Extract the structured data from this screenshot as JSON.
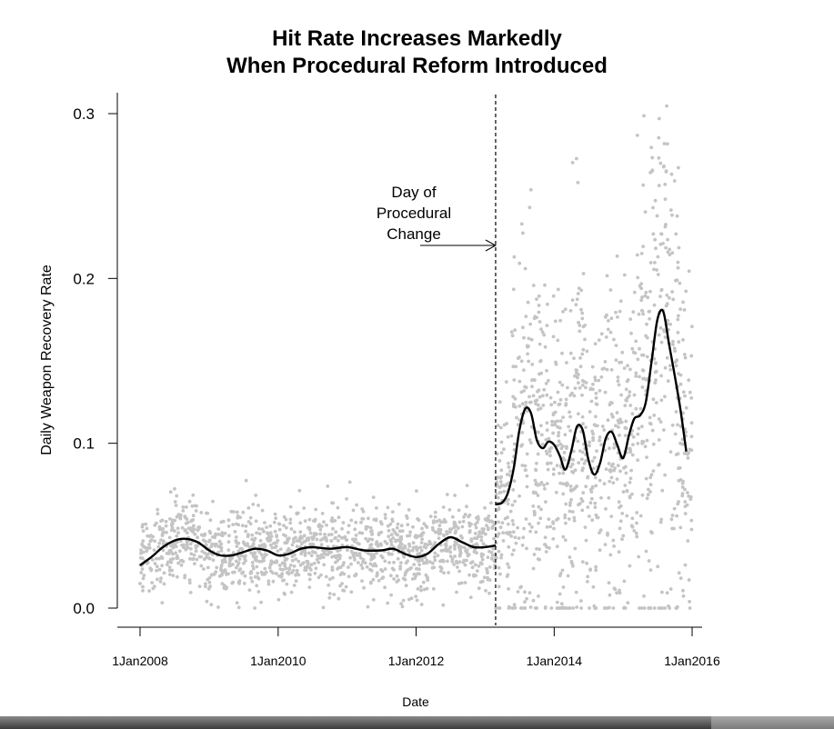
{
  "chart_data": {
    "type": "scatter",
    "title_lines": [
      "Hit Rate Increases Markedly",
      "When Procedural Reform Introduced"
    ],
    "xlabel": "Date",
    "ylabel": "Daily Weapon Recovery Rate",
    "x_axis_type": "date",
    "xlim": [
      "2008-01-01",
      "2016-01-01"
    ],
    "ylim": [
      0.0,
      0.3
    ],
    "x_ticks": [
      {
        "date": "2008-01-01",
        "label": "1Jan2008"
      },
      {
        "date": "2010-01-01",
        "label": "1Jan2010"
      },
      {
        "date": "2012-01-01",
        "label": "1Jan2012"
      },
      {
        "date": "2014-01-01",
        "label": "1Jan2014"
      },
      {
        "date": "2016-01-01",
        "label": "1Jan2016"
      }
    ],
    "y_ticks": [
      {
        "value": 0.0,
        "label": "0.0"
      },
      {
        "value": 0.1,
        "label": "0.1"
      },
      {
        "value": 0.2,
        "label": "0.2"
      },
      {
        "value": 0.3,
        "label": "0.3"
      }
    ],
    "grid": false,
    "legend": "none",
    "reform_date": "2013-02-25",
    "annotation": {
      "lines": [
        "Day of",
        "Procedural",
        "Change"
      ]
    },
    "colors": {
      "points": "#c4c4c4",
      "smooth_line": "#000000",
      "reform_line": "#000000"
    },
    "point_clouds": [
      {
        "from": "2008-01-01",
        "to": "2013-02-25",
        "n": 1350,
        "sd": 0.013,
        "max": 0.1
      },
      {
        "from": "2013-02-25",
        "to": "2016-01-01",
        "n": 1100,
        "sd_rel": 0.5,
        "max": 0.31,
        "zero_share": 0.05
      }
    ],
    "smooth_series": [
      {
        "segment": "pre-reform",
        "points": [
          [
            "2008-01-01",
            0.026
          ],
          [
            "2008-03-01",
            0.031
          ],
          [
            "2008-05-01",
            0.037
          ],
          [
            "2008-07-01",
            0.041
          ],
          [
            "2008-09-01",
            0.042
          ],
          [
            "2008-11-01",
            0.04
          ],
          [
            "2009-01-01",
            0.035
          ],
          [
            "2009-03-01",
            0.032
          ],
          [
            "2009-05-01",
            0.032
          ],
          [
            "2009-07-01",
            0.034
          ],
          [
            "2009-09-01",
            0.036
          ],
          [
            "2009-11-01",
            0.035
          ],
          [
            "2010-01-01",
            0.032
          ],
          [
            "2010-03-01",
            0.033
          ],
          [
            "2010-05-01",
            0.036
          ],
          [
            "2010-07-01",
            0.037
          ],
          [
            "2010-10-01",
            0.036
          ],
          [
            "2011-01-01",
            0.037
          ],
          [
            "2011-04-01",
            0.035
          ],
          [
            "2011-07-01",
            0.035
          ],
          [
            "2011-09-01",
            0.036
          ],
          [
            "2011-11-01",
            0.033
          ],
          [
            "2012-01-01",
            0.031
          ],
          [
            "2012-03-01",
            0.033
          ],
          [
            "2012-05-01",
            0.039
          ],
          [
            "2012-07-01",
            0.043
          ],
          [
            "2012-09-01",
            0.04
          ],
          [
            "2012-11-01",
            0.037
          ],
          [
            "2013-01-01",
            0.037
          ],
          [
            "2013-02-25",
            0.038
          ]
        ]
      },
      {
        "segment": "post-reform",
        "points": [
          [
            "2013-02-25",
            0.063
          ],
          [
            "2013-04-01",
            0.064
          ],
          [
            "2013-05-01",
            0.07
          ],
          [
            "2013-06-01",
            0.085
          ],
          [
            "2013-07-01",
            0.108
          ],
          [
            "2013-08-01",
            0.121
          ],
          [
            "2013-09-01",
            0.118
          ],
          [
            "2013-10-01",
            0.102
          ],
          [
            "2013-11-01",
            0.097
          ],
          [
            "2013-12-01",
            0.101
          ],
          [
            "2014-01-01",
            0.099
          ],
          [
            "2014-02-01",
            0.092
          ],
          [
            "2014-03-01",
            0.084
          ],
          [
            "2014-04-01",
            0.095
          ],
          [
            "2014-05-01",
            0.11
          ],
          [
            "2014-06-01",
            0.108
          ],
          [
            "2014-07-01",
            0.09
          ],
          [
            "2014-08-01",
            0.081
          ],
          [
            "2014-09-01",
            0.088
          ],
          [
            "2014-10-01",
            0.103
          ],
          [
            "2014-11-01",
            0.107
          ],
          [
            "2014-12-01",
            0.099
          ],
          [
            "2015-01-01",
            0.091
          ],
          [
            "2015-02-01",
            0.105
          ],
          [
            "2015-03-01",
            0.115
          ],
          [
            "2015-04-01",
            0.117
          ],
          [
            "2015-05-01",
            0.125
          ],
          [
            "2015-06-01",
            0.15
          ],
          [
            "2015-07-01",
            0.175
          ],
          [
            "2015-08-01",
            0.18
          ],
          [
            "2015-09-01",
            0.16
          ],
          [
            "2015-10-01",
            0.141
          ],
          [
            "2015-11-01",
            0.12
          ],
          [
            "2015-12-01",
            0.095
          ]
        ]
      }
    ]
  }
}
